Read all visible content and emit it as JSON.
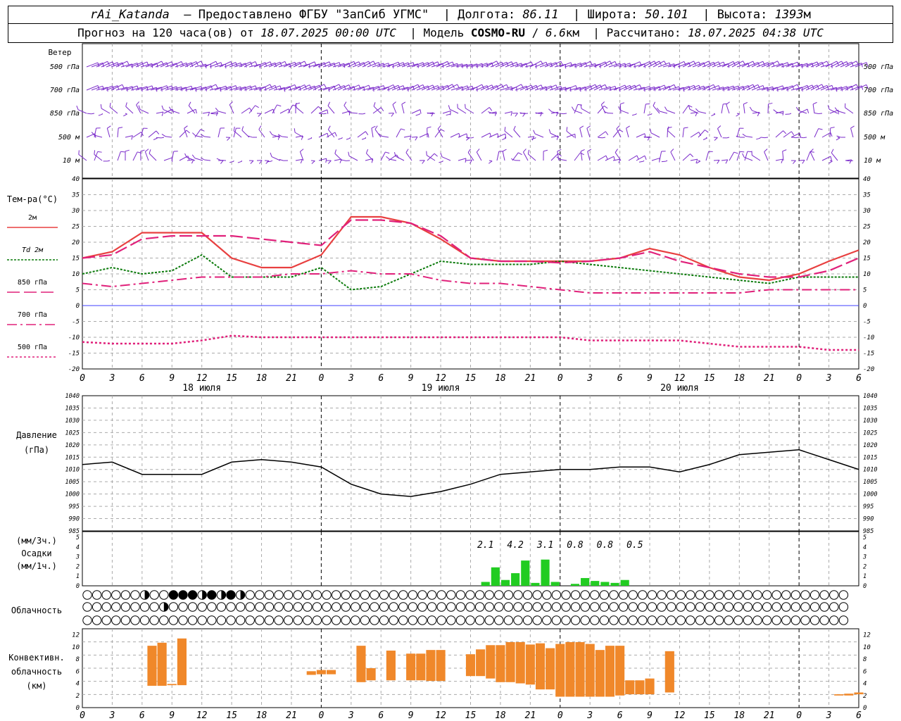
{
  "header": {
    "station": "rAi_Katanda",
    "provider": "Предоставлено ФГБУ \"ЗапСиб УГМС\"",
    "lon_label": "Долгота:",
    "lon": "86.11",
    "lat_label": "Широта:",
    "lat": "50.101",
    "alt_label": "Высота:",
    "alt": "1393",
    "alt_unit": "м",
    "forecast_label": "Прогноз на 120 часа(ов) от",
    "forecast_start": "18.07.2025 00:00 UTC",
    "model_label": "Модель",
    "model": "COSMO-RU",
    "model_res": "6.6",
    "model_res_unit": "км",
    "calc_label": "Рассчитано:",
    "calc_time": "18.07.2025 04:38 UTC"
  },
  "colors": {
    "t2m": "#e84040",
    "td2m": "#0a7a0a",
    "t850": "#e0207a",
    "t700": "#e0207a",
    "t500": "#e0207a",
    "wind": "#7a2aca",
    "pressure": "#000000",
    "precip": "#22cc22",
    "convective": "#f0882a",
    "zero_line": "#4040ff"
  },
  "chart_data": [
    {
      "type": "wind_barbs",
      "label": "Ветер",
      "levels": [
        "500 гПа",
        "700 гПа",
        "850 гПа",
        "500 м",
        "10 м"
      ]
    },
    {
      "type": "line",
      "title": "Тем-ра(°C)",
      "ylim": [
        -20,
        40
      ],
      "yticks": [
        40,
        35,
        30,
        25,
        20,
        15,
        10,
        5,
        0,
        -5,
        -10,
        -15,
        -20
      ],
      "x_hours_ticks": [
        "0",
        "3",
        "6",
        "9",
        "12",
        "15",
        "18",
        "21",
        "0",
        "3",
        "6",
        "9",
        "12",
        "15",
        "18",
        "21",
        "0",
        "3",
        "6",
        "9",
        "12",
        "15",
        "18",
        "21",
        "0",
        "3",
        "6"
      ],
      "day_labels": [
        "18 июля",
        "19 июля",
        "20 июля"
      ],
      "legend": [
        {
          "label": "2м",
          "style": "solid"
        },
        {
          "label": "Td 2м",
          "style": "dotted"
        },
        {
          "label": "850 гПа",
          "style": "longdash"
        },
        {
          "label": "700 гПа",
          "style": "dashdot"
        },
        {
          "label": "500 гПа",
          "style": "dotted"
        }
      ],
      "x_hours": [
        0,
        3,
        6,
        9,
        12,
        15,
        18,
        21,
        24,
        27,
        30,
        33,
        36,
        39,
        42,
        45,
        48,
        51,
        54,
        57,
        60,
        63,
        66,
        69,
        72,
        75,
        78
      ],
      "series": [
        {
          "name": "2м",
          "values": [
            15,
            17,
            23,
            23,
            23,
            15,
            12,
            12,
            16,
            28,
            28,
            26,
            21,
            15,
            14,
            14,
            14,
            14,
            15,
            18,
            16,
            12,
            9,
            8,
            10,
            14,
            17.5
          ]
        },
        {
          "name": "Td 2м",
          "values": [
            10,
            12,
            10,
            11,
            16,
            9,
            9,
            9,
            12,
            5,
            6,
            10,
            14,
            13,
            13,
            13,
            14,
            13,
            12,
            11,
            10,
            9,
            8,
            7,
            9,
            9,
            9
          ]
        },
        {
          "name": "850 гПа",
          "values": [
            15,
            16,
            21,
            22,
            22,
            22,
            21,
            20,
            19,
            27,
            27,
            26,
            22,
            15,
            14,
            14,
            13.5,
            14,
            15,
            17,
            14,
            12,
            10,
            9,
            9,
            11,
            15
          ]
        },
        {
          "name": "700 гПа",
          "values": [
            7,
            6,
            7,
            8,
            9,
            9,
            9,
            10,
            10,
            11,
            10,
            10,
            8,
            7,
            7,
            6,
            5,
            4,
            4,
            4,
            4,
            4,
            4,
            5,
            5,
            5,
            5
          ]
        },
        {
          "name": "500 гПа",
          "values": [
            -11.5,
            -12,
            -12,
            -12,
            -11,
            -9.5,
            -10,
            -10,
            -10,
            -10,
            -10,
            -10,
            -10,
            -10,
            -10,
            -10,
            -10,
            -11,
            -11,
            -11,
            -11,
            -12,
            -13,
            -13,
            -13,
            -14,
            -14
          ]
        }
      ]
    },
    {
      "type": "line",
      "title": "Давление",
      "ylabel": "(гПа)",
      "ylim": [
        985,
        1040
      ],
      "yticks": [
        1040,
        1035,
        1030,
        1025,
        1020,
        1015,
        1010,
        1005,
        1000,
        995,
        990,
        985
      ],
      "x_hours": [
        0,
        3,
        6,
        9,
        12,
        15,
        18,
        21,
        24,
        27,
        30,
        33,
        36,
        39,
        42,
        45,
        48,
        51,
        54,
        57,
        60,
        63,
        66,
        69,
        72,
        75,
        78
      ],
      "series": [
        {
          "name": "",
          "values": [
            1012,
            1013,
            1008,
            1008,
            1008,
            1013,
            1014,
            1013,
            1011,
            1004,
            1000,
            999,
            1001,
            1004,
            1008,
            1009,
            1010,
            1010,
            1011,
            1011,
            1009,
            1012,
            1016,
            1017,
            1018,
            1014,
            1010
          ]
        }
      ]
    },
    {
      "type": "bar",
      "label": "Осадки",
      "ylabel_top": "(мм/3ч.)",
      "ylabel_bottom": "(мм/1ч.)",
      "ylim": [
        0,
        5
      ],
      "yticks": [
        5,
        4,
        3,
        2,
        1,
        0
      ],
      "totals_3h": [
        "2.1",
        "4.2",
        "3.1",
        "0.8",
        "0.8",
        "0.5"
      ],
      "x_hours": [
        40,
        41,
        42,
        43,
        44,
        45,
        46,
        47,
        48,
        49,
        50,
        51,
        52,
        53,
        54,
        55
      ],
      "values": [
        0.4,
        1.9,
        0.6,
        1.3,
        2.6,
        0.3,
        2.7,
        0.4,
        0,
        0.2,
        0.8,
        0.5,
        0.4,
        0.3,
        0.6,
        0
      ]
    },
    {
      "type": "table",
      "label": "Облачность",
      "rows": [
        {
          "name": "upper",
          "cover": [
            0,
            0,
            0,
            0,
            0,
            0,
            4,
            0,
            0,
            8,
            8,
            8,
            4,
            8,
            4,
            8,
            4,
            0,
            0,
            0,
            0,
            0,
            0,
            0,
            0,
            0,
            0,
            0,
            0,
            0,
            0,
            0,
            0,
            0,
            0,
            0,
            0,
            0,
            0,
            0,
            0,
            0,
            0,
            0,
            0,
            0,
            0,
            0,
            0,
            0,
            0,
            0,
            0,
            0,
            0,
            0,
            0,
            0,
            0,
            0,
            0,
            0,
            0,
            0,
            0,
            0,
            0,
            0,
            0,
            0,
            0,
            0,
            0,
            0,
            0,
            0,
            0,
            0,
            0,
            0
          ]
        },
        {
          "name": "middle",
          "cover": [
            0,
            0,
            0,
            0,
            0,
            0,
            0,
            0,
            4,
            0,
            0,
            0,
            0,
            0,
            0,
            0,
            0,
            0,
            0,
            0,
            0,
            0,
            0,
            0,
            0,
            0,
            0,
            0,
            0,
            0,
            0,
            0,
            0,
            0,
            0,
            0,
            0,
            0,
            0,
            0,
            0,
            0,
            0,
            0,
            0,
            0,
            0,
            0,
            0,
            0,
            0,
            0,
            0,
            0,
            0,
            0,
            0,
            0,
            0,
            0,
            0,
            0,
            0,
            0,
            0,
            0,
            0,
            0,
            0,
            0,
            0,
            0,
            0,
            0,
            0,
            0,
            0,
            0,
            0,
            0
          ]
        },
        {
          "name": "lower",
          "cover": [
            0,
            0,
            0,
            0,
            0,
            0,
            0,
            0,
            0,
            0,
            0,
            0,
            0,
            0,
            0,
            0,
            0,
            0,
            0,
            0,
            0,
            0,
            0,
            0,
            0,
            0,
            0,
            0,
            0,
            0,
            0,
            0,
            0,
            0,
            0,
            0,
            0,
            0,
            0,
            0,
            0,
            0,
            0,
            0,
            0,
            0,
            0,
            0,
            0,
            0,
            0,
            0,
            0,
            0,
            0,
            0,
            0,
            0,
            0,
            0,
            0,
            0,
            0,
            0,
            0,
            0,
            0,
            0,
            0,
            0,
            0,
            0,
            0,
            0,
            0,
            0,
            0,
            0,
            0,
            0
          ]
        }
      ]
    },
    {
      "type": "bar",
      "label": "Конвективн. облачность (км)",
      "ylim": [
        0,
        13
      ],
      "yticks": [
        12,
        10,
        8,
        6,
        4,
        2,
        0
      ],
      "x_hours": [
        7,
        8,
        9,
        10,
        23,
        24,
        25,
        28,
        29,
        31,
        33,
        34,
        35,
        36,
        39,
        40,
        41,
        42,
        43,
        44,
        45,
        46,
        47,
        48,
        49,
        50,
        51,
        52,
        53,
        54,
        55,
        56,
        57,
        59,
        76,
        77,
        78
      ],
      "base": [
        3.6,
        3.6,
        3.7,
        3.7,
        5.4,
        5.5,
        5.5,
        4.2,
        4.5,
        4.5,
        4.5,
        4.5,
        4.4,
        4.4,
        5.2,
        5.2,
        4.8,
        4.2,
        4.2,
        4.0,
        3.8,
        3.0,
        3.0,
        1.8,
        1.8,
        1.8,
        1.8,
        1.8,
        1.8,
        2.0,
        2.2,
        2.2,
        2.2,
        2.5,
        2.0,
        2.0,
        2.2
      ],
      "top": [
        10.2,
        10.7,
        3.9,
        11.4,
        6.0,
        6.2,
        6.2,
        10.2,
        6.5,
        9.4,
        8.9,
        8.9,
        9.5,
        9.5,
        8.8,
        9.6,
        10.3,
        10.3,
        10.8,
        10.8,
        10.4,
        10.6,
        9.8,
        10.5,
        10.8,
        10.8,
        10.5,
        9.5,
        10.2,
        10.2,
        4.5,
        4.5,
        4.8,
        9.3,
        2.2,
        2.3,
        2.5
      ]
    }
  ]
}
